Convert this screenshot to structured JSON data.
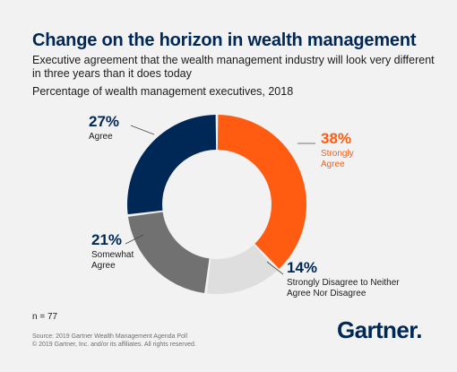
{
  "title": "Change on the horizon in wealth management",
  "subtitle": "Executive agreement that the wealth management industry will look very different in three years than it does today",
  "subtitle2": "Percentage of wealth management executives, 2018",
  "chart_data": {
    "type": "pie",
    "donut": true,
    "slices": [
      {
        "label": "Strongly Agree",
        "label_lines": [
          "Strongly",
          "Agree"
        ],
        "value": 38,
        "value_label": "38%",
        "color": "#ff5c12",
        "label_color": "#ff5c12"
      },
      {
        "label": "Strongly Disagree to Neither Agree Nor Disagree",
        "label_lines": [
          "Strongly Disagree to Neither",
          "Agree Nor Disagree"
        ],
        "value": 14,
        "value_label": "14%",
        "color": "#dedede",
        "label_color": "#1b1b1b"
      },
      {
        "label": "Somewhat Agree",
        "label_lines": [
          "Somewhat",
          "Agree"
        ],
        "value": 21,
        "value_label": "21%",
        "color": "#717171",
        "label_color": "#1b1b1b"
      },
      {
        "label": "Agree",
        "label_lines": [
          "Agree"
        ],
        "value": 27,
        "value_label": "27%",
        "color": "#002856",
        "label_color": "#1b1b1b"
      }
    ]
  },
  "n_label": "n = 77",
  "source_lines": [
    "Source: 2019 Gartner Wealth Management Agenda Poll",
    "© 2019 Gartner, Inc. and/or its affiliates. All rights reserved."
  ],
  "logo": {
    "text": "Gartner",
    "dot": "."
  },
  "colors": {
    "title": "#002856",
    "background": "#f2f2f2"
  }
}
